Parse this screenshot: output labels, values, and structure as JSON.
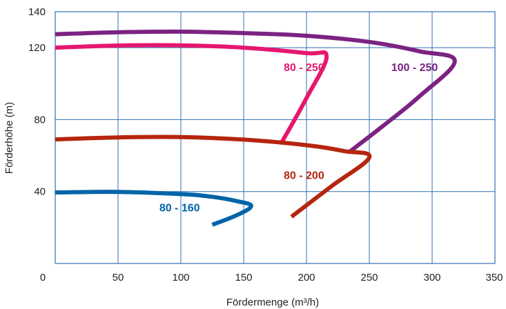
{
  "chart_data": {
    "type": "line",
    "xlabel": "Fördermenge (m³/h)",
    "ylabel": "Förderhöhe (m)",
    "xlim": [
      0,
      350
    ],
    "ylim": [
      0,
      140
    ],
    "x_ticks": [
      0,
      50,
      100,
      150,
      200,
      250,
      300,
      350
    ],
    "y_ticks": [
      40,
      80,
      120,
      140
    ],
    "grid": true,
    "grid_color": "#2f6fb4",
    "series": [
      {
        "name": "100 - 250",
        "color": "#7b2382",
        "x": [
          0,
          50,
          100,
          150,
          200,
          250,
          290,
          318,
          290,
          260,
          234
        ],
        "y": [
          127.5,
          128.6,
          128.9,
          128.1,
          126.6,
          123.2,
          118,
          112.5,
          93,
          76,
          62
        ]
      },
      {
        "name": "80 - 250",
        "color": "#e5176e",
        "x": [
          0,
          50,
          100,
          150,
          200,
          216,
          200,
          180
        ],
        "y": [
          120,
          121.2,
          121.3,
          120,
          117,
          115,
          92,
          67
        ]
      },
      {
        "name": "80 - 200",
        "color": "#b5260f",
        "x": [
          0,
          50,
          100,
          150,
          200,
          230,
          250,
          220,
          188
        ],
        "y": [
          69,
          70.1,
          70.3,
          68.9,
          65.8,
          62.5,
          59,
          43,
          26
        ]
      },
      {
        "name": "80 - 160",
        "color": "#0064a8",
        "x": [
          0,
          50,
          100,
          125,
          145,
          156,
          145,
          125
        ],
        "y": [
          39.5,
          39.8,
          38.6,
          37.1,
          34.6,
          32,
          27,
          21.5
        ]
      }
    ]
  }
}
